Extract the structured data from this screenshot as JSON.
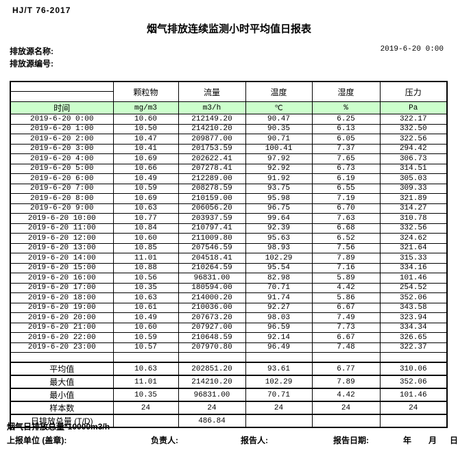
{
  "header": {
    "standard_no": "HJ/T  76-2017",
    "title": "烟气排放连续监测小时平均值日报表",
    "source_name_label": "排放源名称:",
    "source_id_label": "排放源编号:",
    "datetime": "2019-6-20 0:00"
  },
  "table": {
    "time_header": "时间",
    "columns": [
      "颗粒物",
      "流量",
      "温度",
      "湿度",
      "压力"
    ],
    "units": [
      "mg/m3",
      "m3/h",
      "℃",
      "%",
      "Pa"
    ],
    "rows": [
      {
        "time": "2019-6-20 0:00",
        "values": [
          "10.60",
          "212149.20",
          "90.47",
          "6.25",
          "322.17"
        ]
      },
      {
        "time": "2019-6-20 1:00",
        "values": [
          "10.50",
          "214210.20",
          "90.35",
          "6.13",
          "332.50"
        ]
      },
      {
        "time": "2019-6-20 2:00",
        "values": [
          "10.47",
          "209877.00",
          "90.71",
          "6.05",
          "322.56"
        ]
      },
      {
        "time": "2019-6-20 3:00",
        "values": [
          "10.41",
          "201753.59",
          "100.41",
          "7.37",
          "294.42"
        ]
      },
      {
        "time": "2019-6-20 4:00",
        "values": [
          "10.69",
          "202622.41",
          "97.92",
          "7.65",
          "306.73"
        ]
      },
      {
        "time": "2019-6-20 5:00",
        "values": [
          "10.66",
          "207278.41",
          "92.92",
          "6.73",
          "314.51"
        ]
      },
      {
        "time": "2019-6-20 6:00",
        "values": [
          "10.49",
          "212289.00",
          "91.92",
          "6.19",
          "305.03"
        ]
      },
      {
        "time": "2019-6-20 7:00",
        "values": [
          "10.59",
          "208278.59",
          "93.75",
          "6.55",
          "309.33"
        ]
      },
      {
        "time": "2019-6-20 8:00",
        "values": [
          "10.69",
          "210159.00",
          "95.98",
          "7.19",
          "321.89"
        ]
      },
      {
        "time": "2019-6-20 9:00",
        "values": [
          "10.63",
          "206056.20",
          "96.75",
          "6.70",
          "314.27"
        ]
      },
      {
        "time": "2019-6-20 10:00",
        "values": [
          "10.77",
          "203937.59",
          "99.64",
          "7.63",
          "310.78"
        ]
      },
      {
        "time": "2019-6-20 11:00",
        "values": [
          "10.84",
          "210797.41",
          "92.39",
          "6.68",
          "332.56"
        ]
      },
      {
        "time": "2019-6-20 12:00",
        "values": [
          "10.60",
          "211009.80",
          "95.63",
          "6.52",
          "324.62"
        ]
      },
      {
        "time": "2019-6-20 13:00",
        "values": [
          "10.85",
          "207546.59",
          "98.93",
          "7.56",
          "321.64"
        ]
      },
      {
        "time": "2019-6-20 14:00",
        "values": [
          "11.01",
          "204518.41",
          "102.29",
          "7.89",
          "315.33"
        ]
      },
      {
        "time": "2019-6-20 15:00",
        "values": [
          "10.88",
          "210264.59",
          "95.54",
          "7.16",
          "334.16"
        ]
      },
      {
        "time": "2019-6-20 16:00",
        "values": [
          "10.56",
          "96831.00",
          "82.98",
          "5.89",
          "101.46"
        ]
      },
      {
        "time": "2019-6-20 17:00",
        "values": [
          "10.35",
          "180594.00",
          "70.71",
          "4.42",
          "254.52"
        ]
      },
      {
        "time": "2019-6-20 18:00",
        "values": [
          "10.63",
          "214000.20",
          "91.74",
          "5.86",
          "352.06"
        ]
      },
      {
        "time": "2019-6-20 19:00",
        "values": [
          "10.61",
          "210036.00",
          "92.27",
          "6.67",
          "343.58"
        ]
      },
      {
        "time": "2019-6-20 20:00",
        "values": [
          "10.49",
          "207673.20",
          "98.03",
          "7.49",
          "323.94"
        ]
      },
      {
        "time": "2019-6-20 21:00",
        "values": [
          "10.60",
          "207927.00",
          "96.59",
          "7.73",
          "334.34"
        ]
      },
      {
        "time": "2019-6-20 22:00",
        "values": [
          "10.59",
          "210648.59",
          "92.14",
          "6.67",
          "326.65"
        ]
      },
      {
        "time": "2019-6-20 23:00",
        "values": [
          "10.57",
          "207970.80",
          "96.49",
          "7.48",
          "322.37"
        ]
      }
    ],
    "summary": [
      {
        "label": "平均值",
        "values": [
          "10.63",
          "202851.20",
          "93.61",
          "6.77",
          "310.06"
        ]
      },
      {
        "label": "最大值",
        "values": [
          "11.01",
          "214210.20",
          "102.29",
          "7.89",
          "352.06"
        ]
      },
      {
        "label": "最小值",
        "values": [
          "10.35",
          "96831.00",
          "70.71",
          "4.42",
          "101.46"
        ]
      },
      {
        "label": "样本数",
        "values": [
          "24",
          "24",
          "24",
          "24",
          "24"
        ]
      },
      {
        "label": "日排放总量 (T/D)",
        "values": [
          "",
          "486.84",
          "",
          "",
          ""
        ]
      }
    ]
  },
  "footer": {
    "note": "烟气日排放总量*10000m3/h",
    "report_unit_label": "上报单位 (盖章):",
    "responsible_label": "负责人:",
    "reporter_label": "报告人:",
    "report_date_label": "报告日期:",
    "year_label": "年",
    "month_label": "月",
    "day_label": "日"
  },
  "colors": {
    "units_row_bg": "#ccffcc",
    "border": "#000000"
  }
}
